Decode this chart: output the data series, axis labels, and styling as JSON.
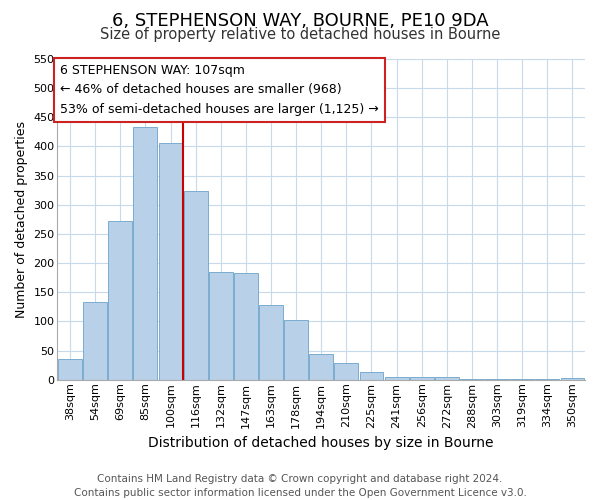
{
  "title": "6, STEPHENSON WAY, BOURNE, PE10 9DA",
  "subtitle": "Size of property relative to detached houses in Bourne",
  "xlabel": "Distribution of detached houses by size in Bourne",
  "ylabel": "Number of detached properties",
  "bar_labels": [
    "38sqm",
    "54sqm",
    "69sqm",
    "85sqm",
    "100sqm",
    "116sqm",
    "132sqm",
    "147sqm",
    "163sqm",
    "178sqm",
    "194sqm",
    "210sqm",
    "225sqm",
    "241sqm",
    "256sqm",
    "272sqm",
    "288sqm",
    "303sqm",
    "319sqm",
    "334sqm",
    "350sqm"
  ],
  "bar_values": [
    35,
    133,
    272,
    433,
    406,
    323,
    184,
    183,
    128,
    103,
    45,
    28,
    14,
    5,
    5,
    5,
    2,
    2,
    2,
    2,
    3
  ],
  "bar_color": "#b8d0e8",
  "bar_edge_color": "#7aadd0",
  "vline_x_index": 4.5,
  "vline_color": "#cc0000",
  "annotation_box_text": "6 STEPHENSON WAY: 107sqm\n← 46% of detached houses are smaller (968)\n53% of semi-detached houses are larger (1,125) →",
  "ylim": [
    0,
    550
  ],
  "yticks": [
    0,
    50,
    100,
    150,
    200,
    250,
    300,
    350,
    400,
    450,
    500,
    550
  ],
  "grid_color": "#c8daea",
  "footer_line1": "Contains HM Land Registry data © Crown copyright and database right 2024.",
  "footer_line2": "Contains public sector information licensed under the Open Government Licence v3.0.",
  "title_fontsize": 13,
  "subtitle_fontsize": 10.5,
  "xlabel_fontsize": 10,
  "ylabel_fontsize": 9,
  "tick_fontsize": 8,
  "annotation_fontsize": 9,
  "footer_fontsize": 7.5
}
